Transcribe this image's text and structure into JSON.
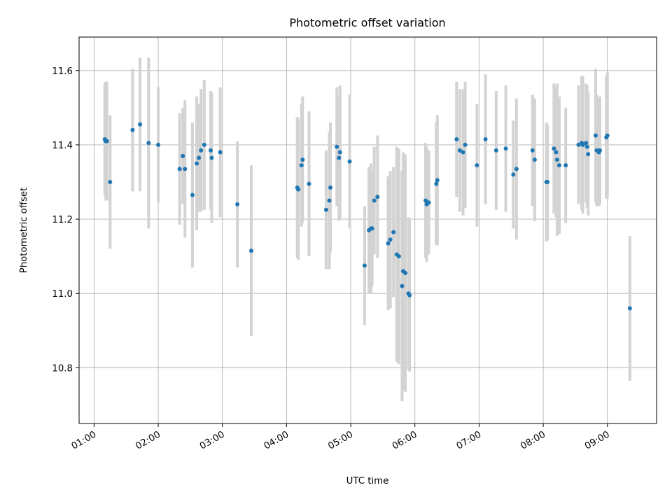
{
  "chart_data": {
    "type": "scatter",
    "title": "Photometric offset variation",
    "xlabel": "UTC time",
    "ylabel": "Photometric offset",
    "x_ticks": [
      "01:00",
      "02:00",
      "03:00",
      "04:00",
      "05:00",
      "06:00",
      "07:00",
      "08:00",
      "09:00"
    ],
    "y_ticks": [
      "10.8",
      "11.0",
      "11.2",
      "11.4",
      "11.6"
    ],
    "xlim": [
      "00:46",
      "09:46"
    ],
    "ylim": [
      10.65,
      11.69
    ],
    "grid": true,
    "colors": {
      "point": "#1f77b4",
      "errorbar": "#d3d3d3"
    },
    "series": [
      {
        "points": [
          {
            "x": "01:10",
            "y": 11.415,
            "yerr": 0.15
          },
          {
            "x": "01:11",
            "y": 11.41,
            "yerr": 0.16
          },
          {
            "x": "01:12",
            "y": 11.41,
            "yerr": 0.16
          },
          {
            "x": "01:15",
            "y": 11.3,
            "yerr": 0.18
          },
          {
            "x": "01:36",
            "y": 11.44,
            "yerr": 0.165
          },
          {
            "x": "01:43",
            "y": 11.455,
            "yerr": 0.18
          },
          {
            "x": "01:51",
            "y": 11.405,
            "yerr": 0.23
          },
          {
            "x": "02:00",
            "y": 11.4,
            "yerr": 0.155
          },
          {
            "x": "02:20",
            "y": 11.335,
            "yerr": 0.15
          },
          {
            "x": "02:23",
            "y": 11.37,
            "yerr": 0.13
          },
          {
            "x": "02:25",
            "y": 11.335,
            "yerr": 0.185
          },
          {
            "x": "02:32",
            "y": 11.265,
            "yerr": 0.195
          },
          {
            "x": "02:36",
            "y": 11.35,
            "yerr": 0.18
          },
          {
            "x": "02:38",
            "y": 11.365,
            "yerr": 0.145
          },
          {
            "x": "02:40",
            "y": 11.385,
            "yerr": 0.165
          },
          {
            "x": "02:43",
            "y": 11.4,
            "yerr": 0.175
          },
          {
            "x": "02:49",
            "y": 11.385,
            "yerr": 0.16
          },
          {
            "x": "02:50",
            "y": 11.365,
            "yerr": 0.175
          },
          {
            "x": "02:58",
            "y": 11.38,
            "yerr": 0.175
          },
          {
            "x": "03:14",
            "y": 11.24,
            "yerr": 0.17
          },
          {
            "x": "03:27",
            "y": 11.115,
            "yerr": 0.23
          },
          {
            "x": "04:10",
            "y": 11.285,
            "yerr": 0.19
          },
          {
            "x": "04:11",
            "y": 11.28,
            "yerr": 0.19
          },
          {
            "x": "04:14",
            "y": 11.345,
            "yerr": 0.165
          },
          {
            "x": "04:15",
            "y": 11.36,
            "yerr": 0.17
          },
          {
            "x": "04:21",
            "y": 11.295,
            "yerr": 0.195
          },
          {
            "x": "04:37",
            "y": 11.225,
            "yerr": 0.16
          },
          {
            "x": "04:40",
            "y": 11.25,
            "yerr": 0.185
          },
          {
            "x": "04:41",
            "y": 11.285,
            "yerr": 0.175
          },
          {
            "x": "04:47",
            "y": 11.395,
            "yerr": 0.16
          },
          {
            "x": "04:49",
            "y": 11.365,
            "yerr": 0.17
          },
          {
            "x": "04:50",
            "y": 11.38,
            "yerr": 0.18
          },
          {
            "x": "04:59",
            "y": 11.355,
            "yerr": 0.18
          },
          {
            "x": "05:13",
            "y": 11.075,
            "yerr": 0.16
          },
          {
            "x": "05:17",
            "y": 11.17,
            "yerr": 0.17
          },
          {
            "x": "05:19",
            "y": 11.175,
            "yerr": 0.175
          },
          {
            "x": "05:20",
            "y": 11.175,
            "yerr": 0.155
          },
          {
            "x": "05:22",
            "y": 11.25,
            "yerr": 0.145
          },
          {
            "x": "05:25",
            "y": 11.26,
            "yerr": 0.165
          },
          {
            "x": "05:35",
            "y": 11.135,
            "yerr": 0.18
          },
          {
            "x": "05:37",
            "y": 11.145,
            "yerr": 0.185
          },
          {
            "x": "05:40",
            "y": 11.165,
            "yerr": 0.175
          },
          {
            "x": "05:43",
            "y": 11.105,
            "yerr": 0.29
          },
          {
            "x": "05:45",
            "y": 11.1,
            "yerr": 0.29
          },
          {
            "x": "05:48",
            "y": 11.02,
            "yerr": 0.31
          },
          {
            "x": "05:49",
            "y": 11.06,
            "yerr": 0.32
          },
          {
            "x": "05:51",
            "y": 11.055,
            "yerr": 0.32
          },
          {
            "x": "05:54",
            "y": 11.0,
            "yerr": 0.205
          },
          {
            "x": "05:55",
            "y": 10.995,
            "yerr": 0.205
          },
          {
            "x": "06:10",
            "y": 11.25,
            "yerr": 0.155
          },
          {
            "x": "06:11",
            "y": 11.24,
            "yerr": 0.155
          },
          {
            "x": "06:13",
            "y": 11.245,
            "yerr": 0.14
          },
          {
            "x": "06:20",
            "y": 11.295,
            "yerr": 0.165
          },
          {
            "x": "06:21",
            "y": 11.305,
            "yerr": 0.175
          },
          {
            "x": "06:39",
            "y": 11.415,
            "yerr": 0.155
          },
          {
            "x": "06:42",
            "y": 11.385,
            "yerr": 0.165
          },
          {
            "x": "06:45",
            "y": 11.38,
            "yerr": 0.17
          },
          {
            "x": "06:47",
            "y": 11.4,
            "yerr": 0.17
          },
          {
            "x": "06:58",
            "y": 11.345,
            "yerr": 0.165
          },
          {
            "x": "07:06",
            "y": 11.415,
            "yerr": 0.175
          },
          {
            "x": "07:16",
            "y": 11.385,
            "yerr": 0.16
          },
          {
            "x": "07:25",
            "y": 11.39,
            "yerr": 0.17
          },
          {
            "x": "07:32",
            "y": 11.32,
            "yerr": 0.145
          },
          {
            "x": "07:35",
            "y": 11.335,
            "yerr": 0.19
          },
          {
            "x": "07:50",
            "y": 11.385,
            "yerr": 0.15
          },
          {
            "x": "07:52",
            "y": 11.36,
            "yerr": 0.165
          },
          {
            "x": "08:03",
            "y": 11.3,
            "yerr": 0.16
          },
          {
            "x": "08:04",
            "y": 11.3,
            "yerr": 0.155
          },
          {
            "x": "08:10",
            "y": 11.39,
            "yerr": 0.175
          },
          {
            "x": "08:12",
            "y": 11.38,
            "yerr": 0.175
          },
          {
            "x": "08:13",
            "y": 11.36,
            "yerr": 0.205
          },
          {
            "x": "08:15",
            "y": 11.345,
            "yerr": 0.185
          },
          {
            "x": "08:21",
            "y": 11.345,
            "yerr": 0.155
          },
          {
            "x": "08:33",
            "y": 11.4,
            "yerr": 0.16
          },
          {
            "x": "08:36",
            "y": 11.405,
            "yerr": 0.18
          },
          {
            "x": "08:37",
            "y": 11.4,
            "yerr": 0.185
          },
          {
            "x": "08:40",
            "y": 11.405,
            "yerr": 0.16
          },
          {
            "x": "08:41",
            "y": 11.395,
            "yerr": 0.165
          },
          {
            "x": "08:42",
            "y": 11.375,
            "yerr": 0.165
          },
          {
            "x": "08:49",
            "y": 11.425,
            "yerr": 0.18
          },
          {
            "x": "08:50",
            "y": 11.385,
            "yerr": 0.15
          },
          {
            "x": "08:52",
            "y": 11.38,
            "yerr": 0.145
          },
          {
            "x": "08:53",
            "y": 11.385,
            "yerr": 0.145
          },
          {
            "x": "08:59",
            "y": 11.42,
            "yerr": 0.165
          },
          {
            "x": "09:00",
            "y": 11.425,
            "yerr": 0.17
          },
          {
            "x": "09:21",
            "y": 10.96,
            "yerr": 0.195
          }
        ]
      }
    ]
  }
}
